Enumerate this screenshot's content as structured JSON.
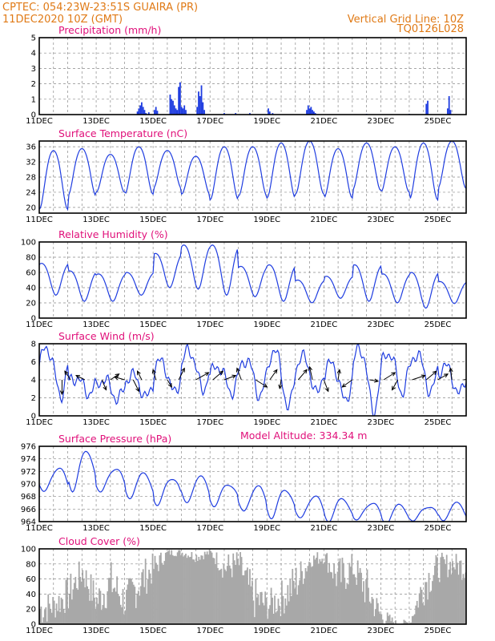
{
  "header": {
    "station": "CPTEC:  054:23W-23:51S  GUAIRA (PR)",
    "run": "11DEC2020  10Z  (GMT)",
    "vgrid": "Vertical Grid Line: 10Z",
    "code": "TQ0126L028"
  },
  "model_altitude": "Model Altitude: 334.34 m",
  "colors": {
    "header": "#e07a16",
    "title": "#e0107a",
    "line": "#1f3de0",
    "cloud": "#a8a8a8"
  },
  "x_labels": [
    "11DEC",
    "13DEC",
    "15DEC",
    "17DEC",
    "19DEC",
    "21DEC",
    "23DEC",
    "25DEC"
  ],
  "chart_data": [
    {
      "type": "bar",
      "title": "Precipitation  (mm/h)",
      "ylim": [
        0,
        5
      ],
      "yticks": [
        "0",
        "1",
        "2",
        "3",
        "4",
        "5"
      ],
      "grid": true,
      "time_unit": "days since 11DEC2020 10Z",
      "x": [
        3.45,
        3.5,
        3.55,
        3.6,
        3.65,
        3.7,
        3.75,
        3.85,
        4.05,
        4.1,
        4.15,
        4.6,
        4.65,
        4.7,
        4.75,
        4.8,
        4.85,
        4.9,
        4.95,
        5.0,
        5.05,
        5.1,
        5.15,
        5.55,
        5.6,
        5.65,
        5.7,
        5.75,
        5.8,
        6.5,
        6.9,
        7.4,
        8.05,
        8.1,
        8.2,
        9.4,
        9.45,
        9.5,
        9.55,
        9.6,
        9.65,
        9.7,
        11.5,
        13.0,
        13.6,
        13.65,
        14.35,
        14.4,
        14.45
      ],
      "values": [
        0.2,
        0.4,
        0.6,
        0.8,
        0.5,
        0.3,
        0.1,
        0.15,
        0.3,
        0.5,
        0.25,
        1.3,
        1.0,
        0.9,
        0.6,
        0.4,
        0.3,
        1.8,
        2.1,
        0.5,
        0.4,
        0.6,
        0.3,
        0.5,
        1.5,
        1.2,
        1.9,
        0.8,
        0.3,
        0.1,
        0.1,
        0.1,
        0.4,
        0.2,
        0.1,
        0.3,
        0.6,
        0.4,
        0.5,
        0.3,
        0.2,
        0.1,
        0.05,
        0.05,
        0.7,
        0.9,
        0.4,
        1.2,
        0.3
      ]
    },
    {
      "type": "line",
      "title": "Surface Temperature  (nC)",
      "ylim": [
        18.5,
        37.5
      ],
      "yticks": [
        "20",
        "24",
        "28",
        "32",
        "36"
      ],
      "grid": true,
      "minima": [
        19.5,
        23,
        24,
        23.5,
        25,
        23.5,
        22,
        23,
        22.5,
        23.5,
        22.5,
        24.5,
        24,
        22,
        25,
        27
      ],
      "maxima": [
        35,
        35.5,
        34,
        36,
        35,
        33.5,
        36,
        36,
        37,
        37.5,
        35.5,
        37,
        36,
        37,
        37.5,
        37
      ],
      "phase_shift_hours": 0
    },
    {
      "type": "line",
      "title": "Relative Humidity  (%)",
      "ylim": [
        0,
        100
      ],
      "yticks": [
        "0",
        "20",
        "40",
        "60",
        "80",
        "100"
      ],
      "grid": true,
      "minima": [
        30,
        22,
        22,
        30,
        40,
        38,
        30,
        28,
        22,
        20,
        26,
        22,
        20,
        13,
        19,
        22
      ],
      "maxima": [
        72,
        62,
        58,
        60,
        85,
        96,
        96,
        68,
        70,
        50,
        55,
        70,
        58,
        60,
        48,
        88
      ],
      "phase_shift_hours": 10
    },
    {
      "type": "line",
      "title": "Surface Wind  (m/s)",
      "ylim": [
        0,
        8
      ],
      "yticks": [
        "0",
        "2",
        "4",
        "6",
        "8"
      ],
      "grid": true,
      "minima": [
        2.2,
        2.5,
        1.8,
        2.0,
        2.5,
        2.8,
        2.6,
        2.2,
        0.8,
        2.4,
        1.6,
        0.5,
        2.6,
        2.6,
        2.4,
        2.8
      ],
      "maxima": [
        7.5,
        4.2,
        4.0,
        4.5,
        6.0,
        7.2,
        5.5,
        6.2,
        7.2,
        6.5,
        5.8,
        7.5,
        7.0,
        6.8,
        5.5,
        5.0
      ],
      "phase_shift_hours": 6,
      "vectors": [
        {
          "t": 0.8,
          "u": 0,
          "v": -1
        },
        {
          "t": 1.1,
          "u": -0.4,
          "v": 0.6
        },
        {
          "t": 1.6,
          "u": -0.6,
          "v": 0.3
        },
        {
          "t": 2.2,
          "u": 0.3,
          "v": -0.7
        },
        {
          "t": 2.5,
          "u": 0.6,
          "v": 0.4
        },
        {
          "t": 3.0,
          "u": -0.7,
          "v": 0.2
        },
        {
          "t": 3.3,
          "u": 0.4,
          "v": -0.8
        },
        {
          "t": 3.6,
          "u": -0.3,
          "v": 0.6
        },
        {
          "t": 4.1,
          "u": -0.2,
          "v": 0.7
        },
        {
          "t": 4.5,
          "u": 0.3,
          "v": -0.5
        },
        {
          "t": 4.9,
          "u": 0.4,
          "v": 0.8
        },
        {
          "t": 5.5,
          "u": 0.9,
          "v": 0.5
        },
        {
          "t": 6.1,
          "u": 0.7,
          "v": 0.6
        },
        {
          "t": 6.5,
          "u": 0.8,
          "v": 0.3
        },
        {
          "t": 7.1,
          "u": -0.3,
          "v": 0.8
        },
        {
          "t": 7.6,
          "u": 0.8,
          "v": -0.5
        },
        {
          "t": 8.1,
          "u": 0.5,
          "v": 0.7
        },
        {
          "t": 8.5,
          "u": -0.1,
          "v": -0.6
        },
        {
          "t": 9.1,
          "u": 0.6,
          "v": 0.7
        },
        {
          "t": 9.6,
          "u": -0.2,
          "v": 0.9
        },
        {
          "t": 10.0,
          "u": 0.3,
          "v": -0.8
        },
        {
          "t": 10.5,
          "u": 0.1,
          "v": 0.7
        },
        {
          "t": 11.0,
          "u": -0.7,
          "v": -0.5
        },
        {
          "t": 11.6,
          "u": 0.6,
          "v": -0.1
        },
        {
          "t": 12.1,
          "u": 0.8,
          "v": 0.5
        },
        {
          "t": 12.6,
          "u": -0.4,
          "v": -0.7
        },
        {
          "t": 13.1,
          "u": 0.9,
          "v": 0.3
        },
        {
          "t": 13.6,
          "u": 0.7,
          "v": 0.6
        },
        {
          "t": 14.0,
          "u": 0.7,
          "v": 0.4
        },
        {
          "t": 14.5,
          "u": -0.1,
          "v": 0.8
        },
        {
          "t": 14.9,
          "u": 1.0,
          "v": 0.1
        }
      ]
    },
    {
      "type": "line",
      "title": "Surface Pressure  (hPa)",
      "ylim": [
        964,
        976
      ],
      "yticks": [
        "964",
        "966",
        "968",
        "970",
        "972",
        "974",
        "976"
      ],
      "grid": true,
      "minima": [
        968.5,
        969.0,
        968.5,
        967.8,
        966.5,
        967.0,
        966.5,
        965.5,
        964.7,
        964.3,
        964.2,
        964.0,
        963.8,
        964.0,
        964.2,
        964.5
      ],
      "maxima": [
        972.5,
        975.0,
        972.5,
        971.5,
        971.0,
        971.0,
        970.0,
        969.5,
        969.0,
        968.0,
        967.5,
        967.0,
        966.5,
        966.5,
        966.8,
        967.2
      ],
      "phase_shift_hours": -4
    },
    {
      "type": "bar",
      "title": "Cloud Cover  (%)",
      "ylim": [
        0,
        100
      ],
      "yticks": [
        "0",
        "20",
        "40",
        "60",
        "80",
        "100"
      ],
      "grid": true,
      "seed": 7,
      "envelope": [
        {
          "t": 0.0,
          "mean": 20,
          "amp": 25
        },
        {
          "t": 0.5,
          "mean": 25,
          "amp": 20
        },
        {
          "t": 1.0,
          "mean": 40,
          "amp": 25
        },
        {
          "t": 1.5,
          "mean": 70,
          "amp": 20
        },
        {
          "t": 2.0,
          "mean": 30,
          "amp": 25
        },
        {
          "t": 2.5,
          "mean": 55,
          "amp": 30
        },
        {
          "t": 3.0,
          "mean": 30,
          "amp": 25
        },
        {
          "t": 3.5,
          "mean": 55,
          "amp": 30
        },
        {
          "t": 4.0,
          "mean": 75,
          "amp": 20
        },
        {
          "t": 4.5,
          "mean": 95,
          "amp": 5
        },
        {
          "t": 5.0,
          "mean": 95,
          "amp": 5
        },
        {
          "t": 5.5,
          "mean": 90,
          "amp": 8
        },
        {
          "t": 6.0,
          "mean": 95,
          "amp": 5
        },
        {
          "t": 6.5,
          "mean": 75,
          "amp": 20
        },
        {
          "t": 7.0,
          "mean": 80,
          "amp": 20
        },
        {
          "t": 7.5,
          "mean": 35,
          "amp": 30
        },
        {
          "t": 8.0,
          "mean": 25,
          "amp": 20
        },
        {
          "t": 8.5,
          "mean": 35,
          "amp": 25
        },
        {
          "t": 9.0,
          "mean": 55,
          "amp": 30
        },
        {
          "t": 9.5,
          "mean": 85,
          "amp": 10
        },
        {
          "t": 10.0,
          "mean": 90,
          "amp": 10
        },
        {
          "t": 10.5,
          "mean": 60,
          "amp": 30
        },
        {
          "t": 11.0,
          "mean": 75,
          "amp": 20
        },
        {
          "t": 11.5,
          "mean": 45,
          "amp": 30
        },
        {
          "t": 12.0,
          "mean": 10,
          "amp": 15
        },
        {
          "t": 12.5,
          "mean": 2,
          "amp": 4
        },
        {
          "t": 13.0,
          "mean": 2,
          "amp": 4
        },
        {
          "t": 13.5,
          "mean": 55,
          "amp": 30
        },
        {
          "t": 14.0,
          "mean": 75,
          "amp": 20
        },
        {
          "t": 14.5,
          "mean": 80,
          "amp": 15
        },
        {
          "t": 15.0,
          "mean": 75,
          "amp": 20
        }
      ]
    }
  ]
}
